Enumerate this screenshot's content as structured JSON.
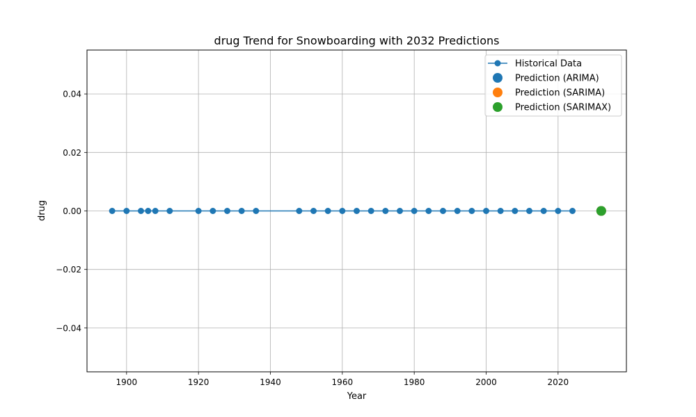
{
  "chart_data": {
    "type": "line",
    "title": "drug Trend for Snowboarding with 2032 Predictions",
    "xlabel": "Year",
    "ylabel": "drug",
    "xlim": [
      1889,
      2039
    ],
    "ylim": [
      -0.055,
      0.055
    ],
    "x_ticks": [
      1900,
      1920,
      1940,
      1960,
      1980,
      2000,
      2020
    ],
    "y_ticks": [
      -0.04,
      -0.02,
      0.0,
      0.02,
      0.04
    ],
    "y_tick_labels": [
      "−0.04",
      "−0.02",
      "0.00",
      "0.02",
      "0.04"
    ],
    "grid": true,
    "legend_position": "top-right",
    "series": [
      {
        "name": "Historical Data",
        "kind": "line-marker",
        "color": "#1f77b4",
        "x": [
          1896,
          1900,
          1904,
          1906,
          1908,
          1912,
          1920,
          1924,
          1928,
          1932,
          1936,
          1948,
          1952,
          1956,
          1960,
          1964,
          1968,
          1972,
          1976,
          1980,
          1984,
          1988,
          1992,
          1996,
          2000,
          2004,
          2008,
          2012,
          2016,
          2020,
          2024
        ],
        "y": [
          0,
          0,
          0,
          0,
          0,
          0,
          0,
          0,
          0,
          0,
          0,
          0,
          0,
          0,
          0,
          0,
          0,
          0,
          0,
          0,
          0,
          0,
          0,
          0,
          0,
          0,
          0,
          0,
          0,
          0,
          0
        ]
      },
      {
        "name": "Prediction (ARIMA)",
        "kind": "point",
        "color": "#1f77b4",
        "x": [
          2032
        ],
        "y": [
          0
        ]
      },
      {
        "name": "Prediction (SARIMA)",
        "kind": "point",
        "color": "#ff7f0e",
        "x": [
          2032
        ],
        "y": [
          0
        ]
      },
      {
        "name": "Prediction (SARIMAX)",
        "kind": "point",
        "color": "#2ca02c",
        "x": [
          2032
        ],
        "y": [
          0
        ]
      }
    ]
  }
}
